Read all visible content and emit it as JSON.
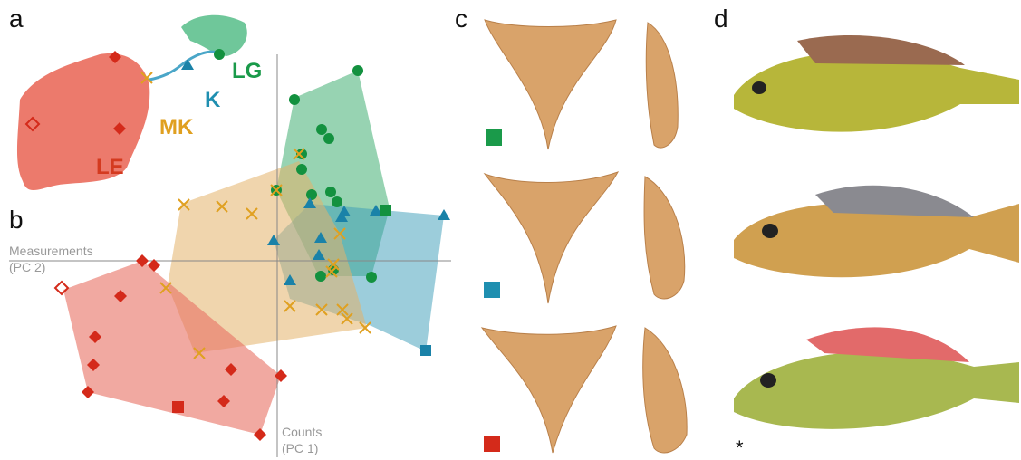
{
  "panels": {
    "a": "a",
    "b": "b",
    "c": "c",
    "d": "d"
  },
  "map_labels": {
    "lg": "LG",
    "k": "K",
    "mk": "MK",
    "le": "LE"
  },
  "axes": {
    "vertical_name": "Measurements",
    "vertical_code": "(PC 2)",
    "horizontal_name": "Counts",
    "horizontal_code": "(PC 1)"
  },
  "footnote": "*"
}
